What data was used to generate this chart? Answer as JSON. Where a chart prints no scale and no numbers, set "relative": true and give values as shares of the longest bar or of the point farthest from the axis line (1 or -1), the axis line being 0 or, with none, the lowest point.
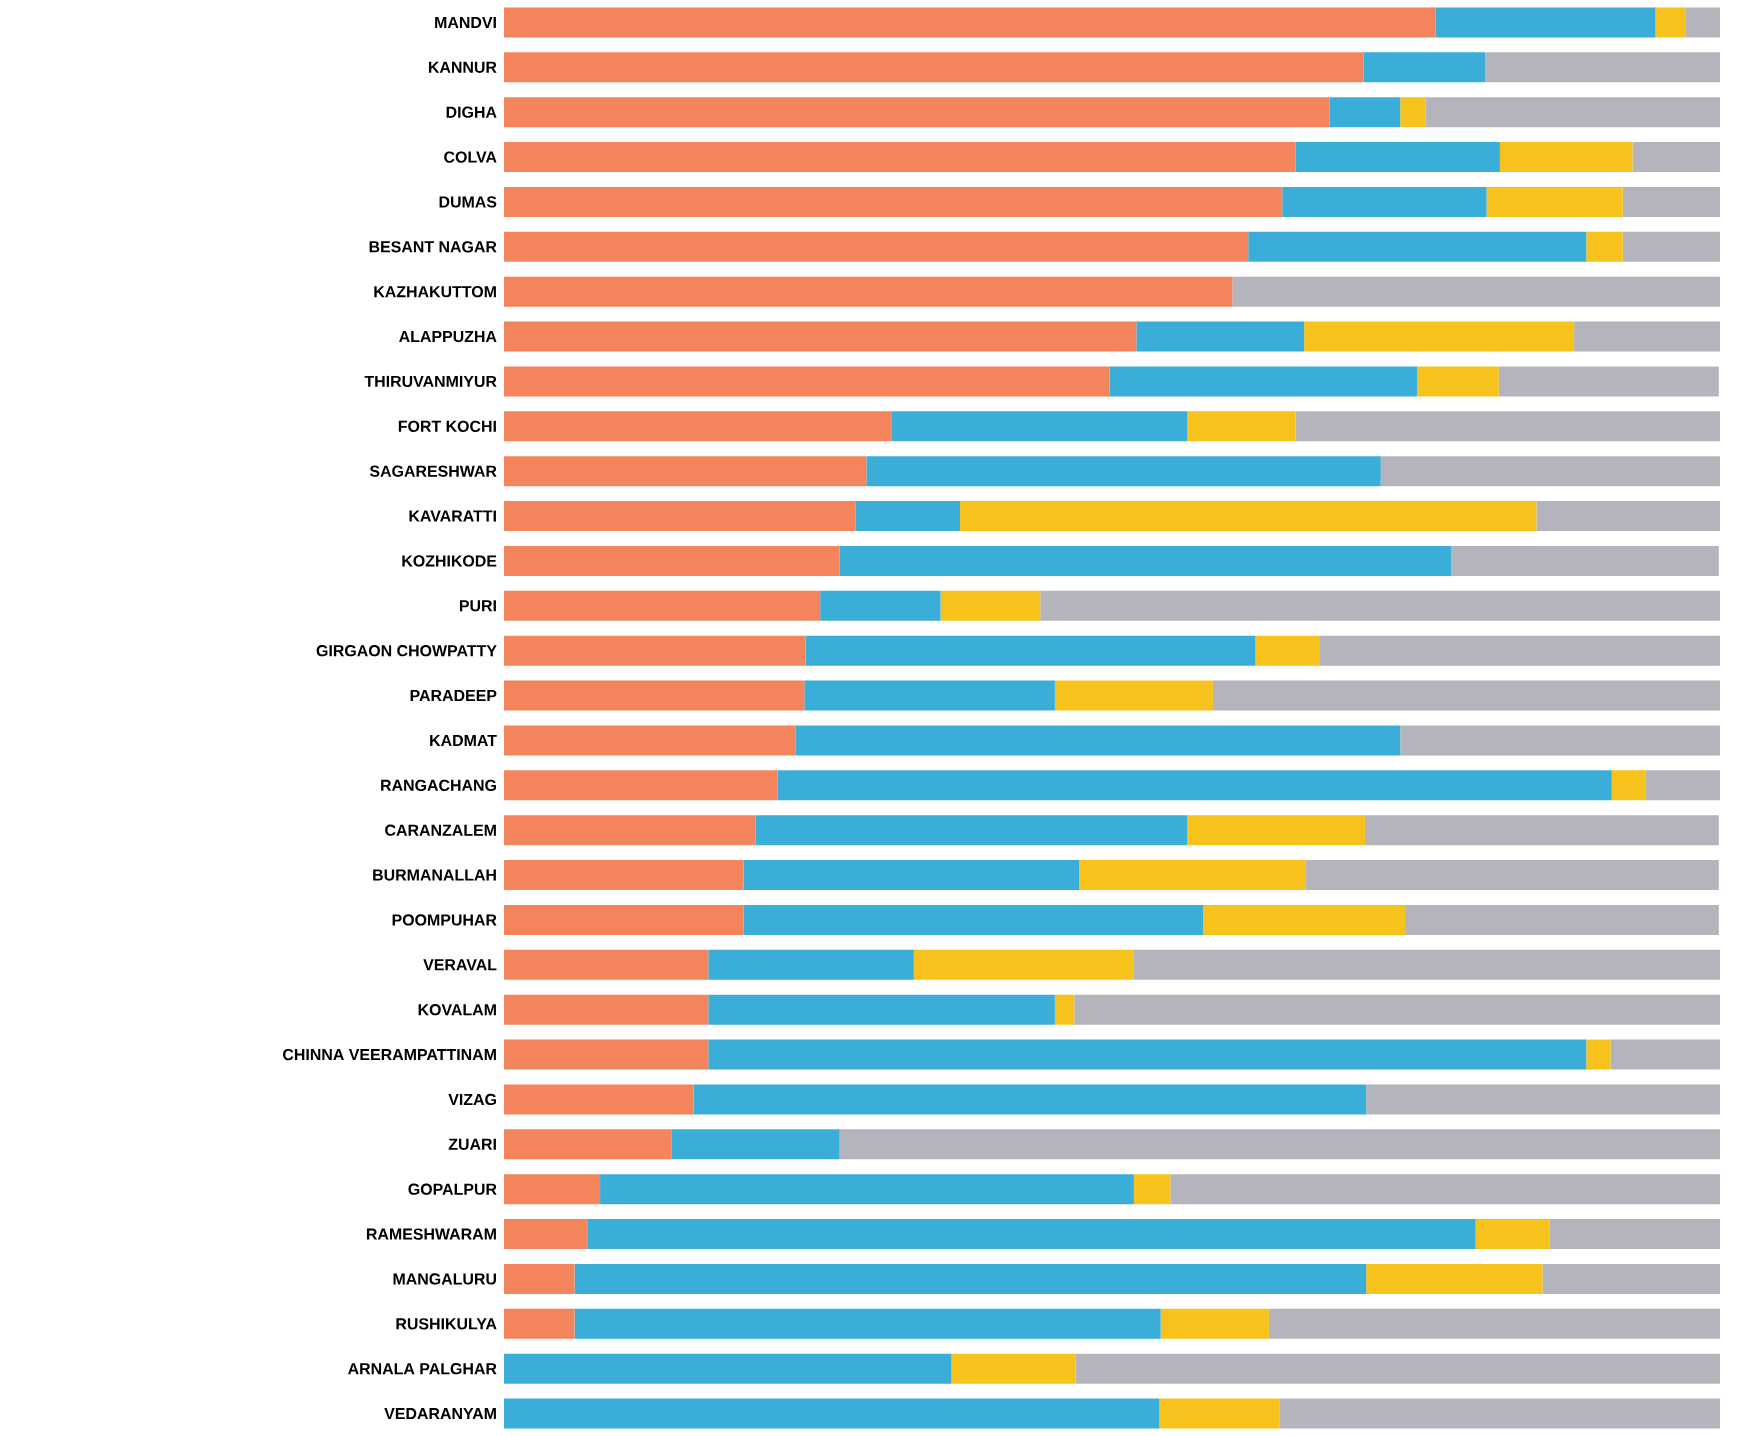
{
  "chart_data": {
    "type": "bar",
    "orientation": "horizontal",
    "stacked": true,
    "relative": true,
    "categories": [
      "MANDVI",
      "KANNUR",
      "DIGHA",
      "COLVA",
      "DUMAS",
      "BESANT NAGAR",
      "KAZHAKUTTOM",
      "ALAPPUZHA",
      "THIRUVANMIYUR",
      "FORT KOCHI",
      "SAGARESHWAR",
      "KAVARATTI",
      "KOZHIKODE",
      "PURI",
      "GIRGAON CHOWPATTY",
      "PARADEEP",
      "KADMAT",
      "RANGACHANG",
      "CARANZALEM",
      "BURMANALLAH",
      "POOMPUHAR",
      "VERAVAL",
      "KOVALAM",
      "CHINNA VEERAMPATTINAM",
      "VIZAG",
      "ZUARI",
      "GOPALPUR",
      "RAMESHWARAM",
      "MANGALURU",
      "RUSHIKULYA",
      "ARNALA PALGHAR",
      "VEDARANYAM"
    ],
    "series": [
      {
        "color": "#f4845c",
        "values": [
          0.766,
          0.707,
          0.679,
          0.651,
          0.64,
          0.612,
          0.599,
          0.52,
          0.498,
          0.319,
          0.298,
          0.289,
          0.276,
          0.26,
          0.248,
          0.247,
          0.24,
          0.225,
          0.207,
          0.197,
          0.197,
          0.168,
          0.168,
          0.168,
          0.156,
          0.138,
          0.079,
          0.069,
          0.058,
          0.058,
          0,
          0
        ]
      },
      {
        "color": "#3aaed8",
        "values": [
          0.181,
          0.1,
          0.058,
          0.168,
          0.168,
          0.278,
          0,
          0.138,
          0.253,
          0.243,
          0.423,
          0.086,
          0.503,
          0.099,
          0.37,
          0.206,
          0.497,
          0.686,
          0.355,
          0.276,
          0.378,
          0.169,
          0.285,
          0.722,
          0.553,
          0.138,
          0.439,
          0.73,
          0.651,
          0.482,
          0.368,
          0.539
        ]
      },
      {
        "color": "#f8c21c",
        "values": [
          0.025,
          0,
          0.021,
          0.109,
          0.112,
          0.03,
          0,
          0.222,
          0.067,
          0.089,
          0,
          0.474,
          0,
          0.082,
          0.053,
          0.13,
          0,
          0.028,
          0.146,
          0.186,
          0.166,
          0.181,
          0.016,
          0.02,
          0,
          0,
          0.03,
          0.061,
          0.145,
          0.089,
          0.102,
          0.099
        ]
      },
      {
        "color": "#b4b4bc",
        "values": [
          0.028,
          0.193,
          0.242,
          0.072,
          0.08,
          0.08,
          0.401,
          0.12,
          0.181,
          0.349,
          0.279,
          0.151,
          0.22,
          0.559,
          0.329,
          0.417,
          0.263,
          0.061,
          0.291,
          0.34,
          0.258,
          0.482,
          0.531,
          0.09,
          0.291,
          0.724,
          0.452,
          0.14,
          0.146,
          0.371,
          0.53,
          0.362
        ]
      }
    ]
  }
}
